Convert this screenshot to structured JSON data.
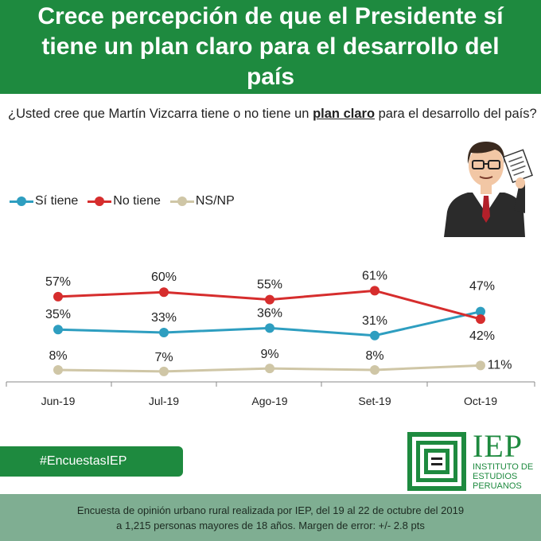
{
  "header": {
    "title": "Crece percepción de que el Presidente sí tiene un plan claro para el desarrollo del país"
  },
  "question": {
    "before": "¿Usted cree que Martín Vizcarra tiene o no tiene un ",
    "emphasis": "plan claro",
    "after": " para el desarrollo del país?"
  },
  "legend": [
    {
      "label": "Sí tiene",
      "color": "#2e9ec0"
    },
    {
      "label": "No tiene",
      "color": "#d62d2d"
    },
    {
      "label": "NS/NP",
      "color": "#cfc6a6"
    }
  ],
  "chart_data": {
    "type": "line",
    "categories": [
      "Jun-19",
      "Jul-19",
      "Ago-19",
      "Set-19",
      "Oct-19"
    ],
    "series": [
      {
        "name": "Sí tiene",
        "color": "#2e9ec0",
        "values": [
          35,
          33,
          36,
          31,
          47
        ],
        "labels": [
          "35%",
          "33%",
          "36%",
          "31%",
          "47%"
        ]
      },
      {
        "name": "No tiene",
        "color": "#d62d2d",
        "values": [
          57,
          60,
          55,
          61,
          42
        ],
        "labels": [
          "57%",
          "60%",
          "55%",
          "61%",
          "42%"
        ]
      },
      {
        "name": "NS/NP",
        "color": "#cfc6a6",
        "values": [
          8,
          7,
          9,
          8,
          11
        ],
        "labels": [
          "8%",
          "7%",
          "9%",
          "8%",
          "11%"
        ]
      }
    ],
    "title": "",
    "xlabel": "",
    "ylabel": "",
    "grid": false,
    "legend_position": "top-left"
  },
  "hashtag": "#EncuestasIEP",
  "logo": {
    "abbr": "IEP",
    "line1": "INSTITUTO DE",
    "line2": "ESTUDIOS",
    "line3": "PERUANOS"
  },
  "footer": {
    "line1": "Encuesta de opinión urbano rural realizada por IEP, del 19 al 22 de octubre del 2019",
    "line2": "a 1,215 personas mayores de 18 años. Margen de error: +/- 2.8 pts"
  }
}
